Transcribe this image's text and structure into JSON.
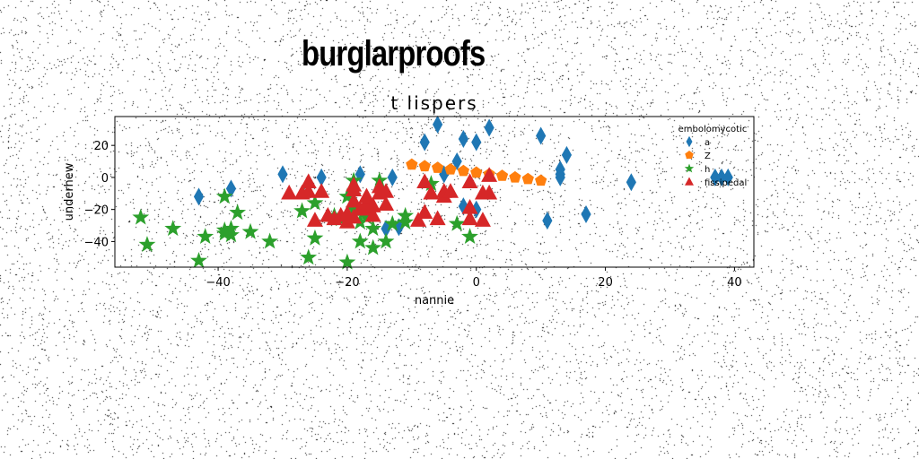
{
  "suptitle": "burglarproofs",
  "chart_data": {
    "type": "scatter",
    "title": "t lispers",
    "xlabel": "nannie",
    "ylabel": "underhew",
    "xlim": [
      -56,
      43
    ],
    "ylim": [
      -56,
      38
    ],
    "xticks": [
      -40,
      -20,
      0,
      20,
      40
    ],
    "yticks": [
      -40,
      -20,
      0,
      20
    ],
    "grid": false,
    "legend": {
      "title": "embolomycotic",
      "position": "top-right"
    },
    "series": [
      {
        "name": "a",
        "color": "#1f77b4",
        "marker": "diamond",
        "points": [
          [
            -43,
            -12
          ],
          [
            -38,
            -7
          ],
          [
            -30,
            2
          ],
          [
            -24,
            0
          ],
          [
            -18,
            2
          ],
          [
            -14,
            -32
          ],
          [
            -13,
            0
          ],
          [
            -12,
            -31
          ],
          [
            -8,
            22
          ],
          [
            -6,
            33
          ],
          [
            -5,
            2
          ],
          [
            -3,
            10
          ],
          [
            -2,
            -18
          ],
          [
            -2,
            24
          ],
          [
            0,
            22
          ],
          [
            0,
            -20
          ],
          [
            2,
            31
          ],
          [
            10,
            26
          ],
          [
            11,
            -27
          ],
          [
            13,
            5
          ],
          [
            13,
            2
          ],
          [
            13,
            0
          ],
          [
            14,
            14
          ],
          [
            17,
            -23
          ],
          [
            24,
            -3
          ],
          [
            37,
            0
          ],
          [
            38,
            0
          ],
          [
            39,
            0
          ]
        ]
      },
      {
        "name": "Z",
        "color": "#ff7f0e",
        "marker": "pentagon",
        "points": [
          [
            -10,
            8
          ],
          [
            -8,
            7
          ],
          [
            -6,
            6
          ],
          [
            -4,
            5
          ],
          [
            -2,
            4
          ],
          [
            0,
            3
          ],
          [
            2,
            2
          ],
          [
            4,
            1
          ],
          [
            6,
            0
          ],
          [
            8,
            -1
          ],
          [
            10,
            -2
          ]
        ]
      },
      {
        "name": "h",
        "color": "#2ca02c",
        "marker": "star",
        "points": [
          [
            -52,
            -25
          ],
          [
            -51,
            -42
          ],
          [
            -47,
            -32
          ],
          [
            -43,
            -52
          ],
          [
            -42,
            -37
          ],
          [
            -39,
            -12
          ],
          [
            -39,
            -33
          ],
          [
            -39,
            -35
          ],
          [
            -38,
            -32
          ],
          [
            -38,
            -36
          ],
          [
            -37,
            -22
          ],
          [
            -35,
            -34
          ],
          [
            -32,
            -40
          ],
          [
            -27,
            -21
          ],
          [
            -26,
            -50
          ],
          [
            -25,
            -16
          ],
          [
            -25,
            -38
          ],
          [
            -22,
            -24
          ],
          [
            -21,
            -26
          ],
          [
            -20,
            -12
          ],
          [
            -20,
            -53
          ],
          [
            -19,
            -2
          ],
          [
            -19,
            -20
          ],
          [
            -18,
            -28
          ],
          [
            -18,
            -40
          ],
          [
            -17,
            -22
          ],
          [
            -17,
            -25
          ],
          [
            -16,
            -32
          ],
          [
            -16,
            -44
          ],
          [
            -15,
            -2
          ],
          [
            -14,
            -40
          ],
          [
            -13,
            -29
          ],
          [
            -11,
            -24
          ],
          [
            -11,
            -28
          ],
          [
            -7,
            -4
          ],
          [
            -3,
            -29
          ],
          [
            -1,
            -37
          ]
        ]
      },
      {
        "name": "fissipedal",
        "color": "#d62728",
        "marker": "triangle",
        "points": [
          [
            -29,
            -10
          ],
          [
            -27,
            -10
          ],
          [
            -26,
            -3
          ],
          [
            -26,
            -9
          ],
          [
            -25,
            -27
          ],
          [
            -24,
            -9
          ],
          [
            -23,
            -24
          ],
          [
            -22,
            -26
          ],
          [
            -21,
            -24
          ],
          [
            -20,
            -28
          ],
          [
            -20,
            -23
          ],
          [
            -19,
            -25
          ],
          [
            -19,
            -8
          ],
          [
            -19,
            -15
          ],
          [
            -19,
            -5
          ],
          [
            -18,
            -20
          ],
          [
            -17,
            -16
          ],
          [
            -17,
            -20
          ],
          [
            -17,
            -12
          ],
          [
            -16,
            -18
          ],
          [
            -16,
            -24
          ],
          [
            -15,
            -6
          ],
          [
            -15,
            -10
          ],
          [
            -14,
            -9
          ],
          [
            -14,
            -17
          ],
          [
            -9,
            -27
          ],
          [
            -8,
            -22
          ],
          [
            -8,
            -3
          ],
          [
            -7,
            -10
          ],
          [
            -6,
            -26
          ],
          [
            -5,
            -12
          ],
          [
            -5,
            -9
          ],
          [
            -4,
            -9
          ],
          [
            -1,
            -19
          ],
          [
            -1,
            -26
          ],
          [
            -1,
            -3
          ],
          [
            1,
            -10
          ],
          [
            1,
            -27
          ],
          [
            2,
            -10
          ],
          [
            2,
            1
          ]
        ]
      }
    ]
  }
}
